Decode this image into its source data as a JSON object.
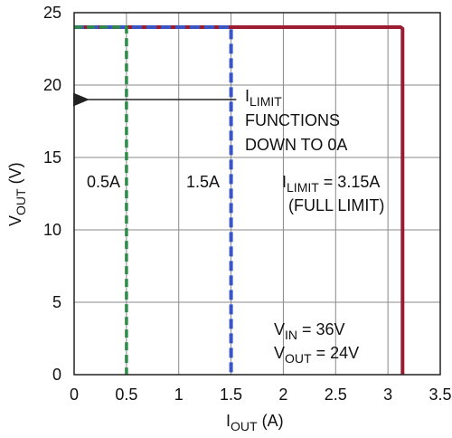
{
  "chart_data": {
    "type": "line",
    "title": "",
    "xlabel": {
      "main": "I",
      "sub": "OUT",
      "rest": " (A)"
    },
    "ylabel": {
      "main": "V",
      "sub": "OUT",
      "rest": " (V)"
    },
    "xlim": [
      0,
      3.5
    ],
    "ylim": [
      0,
      25
    ],
    "xticks": [
      0,
      0.5,
      1,
      1.5,
      2,
      2.5,
      3,
      3.5
    ],
    "xtick_labels": [
      "0",
      "0.5",
      "1",
      "1.5",
      "2",
      "2.5",
      "3",
      "3.5"
    ],
    "yticks": [
      0,
      5,
      10,
      15,
      20,
      25
    ],
    "ytick_labels": [
      "0",
      "5",
      "10",
      "15",
      "20",
      "25"
    ],
    "grid": true,
    "colors": {
      "full_limit": "#9b1b30",
      "limit_1_5": "#3a55c4",
      "limit_0_5": "#2e8b4a",
      "grid": "#888888",
      "axis": "#222222"
    },
    "series": [
      {
        "key": "full_limit",
        "x": [
          0,
          3.12,
          3.14,
          3.14
        ],
        "y": [
          24,
          24,
          23.9,
          0
        ]
      },
      {
        "key": "limit_1_5",
        "x": [
          0,
          1.5,
          1.5
        ],
        "y": [
          24,
          24,
          0
        ]
      },
      {
        "key": "limit_0_5",
        "x": [
          0,
          0.5,
          0.5
        ],
        "y": [
          24,
          24,
          0
        ]
      }
    ],
    "annotations": {
      "ilimit_note": {
        "line1_main": "I",
        "line1_sub": "LIMIT",
        "line2": "FUNCTIONS",
        "line3": "DOWN TO 0A"
      },
      "label_0_5": "0.5A",
      "label_1_5": "1.5A",
      "full_limit_label": {
        "main": "I",
        "sub": "LIMIT",
        "rest": " = 3.15A",
        "line2": "(FULL LIMIT)"
      },
      "conditions": {
        "vin_main": "V",
        "vin_sub": "IN",
        "vin_rest": " = 36V",
        "vout_main": "V",
        "vout_sub": "OUT",
        "vout_rest": " = 24V"
      },
      "arrow": {
        "from": {
          "x": 1.55,
          "y": 19
        },
        "to": {
          "x": 0.03,
          "y": 19
        }
      }
    }
  }
}
